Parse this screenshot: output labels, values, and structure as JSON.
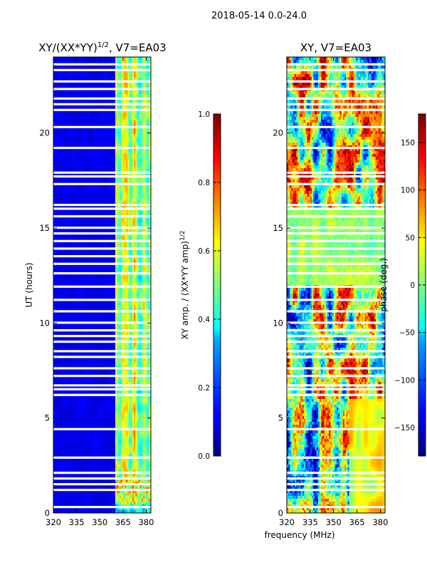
{
  "figure": {
    "suptitle": "2018-05-14 0.0-24.0",
    "shared_xlabel": "frequency (MHz)"
  },
  "chart_data": [
    {
      "type": "heatmap",
      "title": "XY/(XX*YY)^{1/2}, V7=EA03",
      "title_main": "XY/(XX*YY)",
      "title_sup": "1/2",
      "title_rest": ", V7=EA03",
      "xlabel": "frequency (MHz)",
      "ylabel": "UT (hours)",
      "xlim": [
        320,
        383
      ],
      "ylim": [
        0,
        24
      ],
      "xticks": [
        320,
        335,
        350,
        365,
        380
      ],
      "yticks": [
        0,
        5,
        10,
        15,
        20
      ],
      "colormap": "jet",
      "colorbar": {
        "label": "XY amp. / (XX*YY amp)^{1/2}",
        "label_main": "XY amp. / (XX*YY amp)",
        "label_sup": "1/2",
        "range": [
          0.0,
          1.0
        ],
        "ticks": [
          "0.0",
          "0.2",
          "0.4",
          "0.6",
          "0.8",
          "1.0"
        ],
        "tick_values": [
          0.0,
          0.2,
          0.4,
          0.6,
          0.8,
          1.0
        ]
      },
      "description_values": {
        "background_amplitude": 0.1,
        "band_start_mhz": 360,
        "band_amplitude_range": [
          0.3,
          0.8
        ]
      },
      "flagged_hours": [
        0.3,
        1.2,
        1.5,
        1.8,
        2.1,
        2.9,
        4.4,
        6.2,
        6.5,
        6.7,
        7.2,
        7.6,
        8.2,
        8.5,
        9.0,
        9.3,
        9.6,
        10.0,
        10.6,
        11.2,
        11.9,
        12.6,
        13.1,
        13.5,
        13.9,
        14.3,
        14.7,
        15.0,
        15.6,
        16.0,
        16.2,
        17.3,
        17.7,
        17.9,
        19.2,
        20.3,
        21.2,
        21.5,
        21.8,
        22.3,
        22.7,
        23.3,
        23.6
      ]
    },
    {
      "type": "heatmap",
      "title": "XY, V7=EA03",
      "xlabel": "frequency (MHz)",
      "ylabel": "",
      "xlim": [
        320,
        383
      ],
      "ylim": [
        0,
        24
      ],
      "xticks": [
        320,
        335,
        350,
        365,
        380
      ],
      "yticks": [
        0,
        5,
        10,
        15,
        20
      ],
      "colormap": "jet",
      "colorbar": {
        "label": "phase (deg.)",
        "range": [
          -180,
          180
        ],
        "ticks": [
          "−150",
          "−100",
          "−50",
          "0",
          "50",
          "100",
          "150"
        ],
        "tick_values": [
          -150,
          -100,
          -50,
          0,
          50,
          100,
          150
        ]
      },
      "flagged_hours": [
        0.3,
        1.2,
        1.5,
        1.8,
        2.1,
        2.9,
        4.4,
        6.2,
        6.5,
        6.7,
        7.2,
        7.6,
        8.2,
        8.5,
        9.0,
        9.3,
        9.6,
        10.0,
        10.6,
        11.2,
        11.9,
        12.6,
        13.1,
        13.5,
        13.9,
        14.3,
        14.7,
        15.0,
        15.6,
        16.0,
        16.2,
        17.3,
        17.7,
        17.9,
        19.2,
        20.3,
        21.2,
        21.5,
        21.8,
        22.3,
        22.7,
        23.3,
        23.6
      ]
    }
  ]
}
